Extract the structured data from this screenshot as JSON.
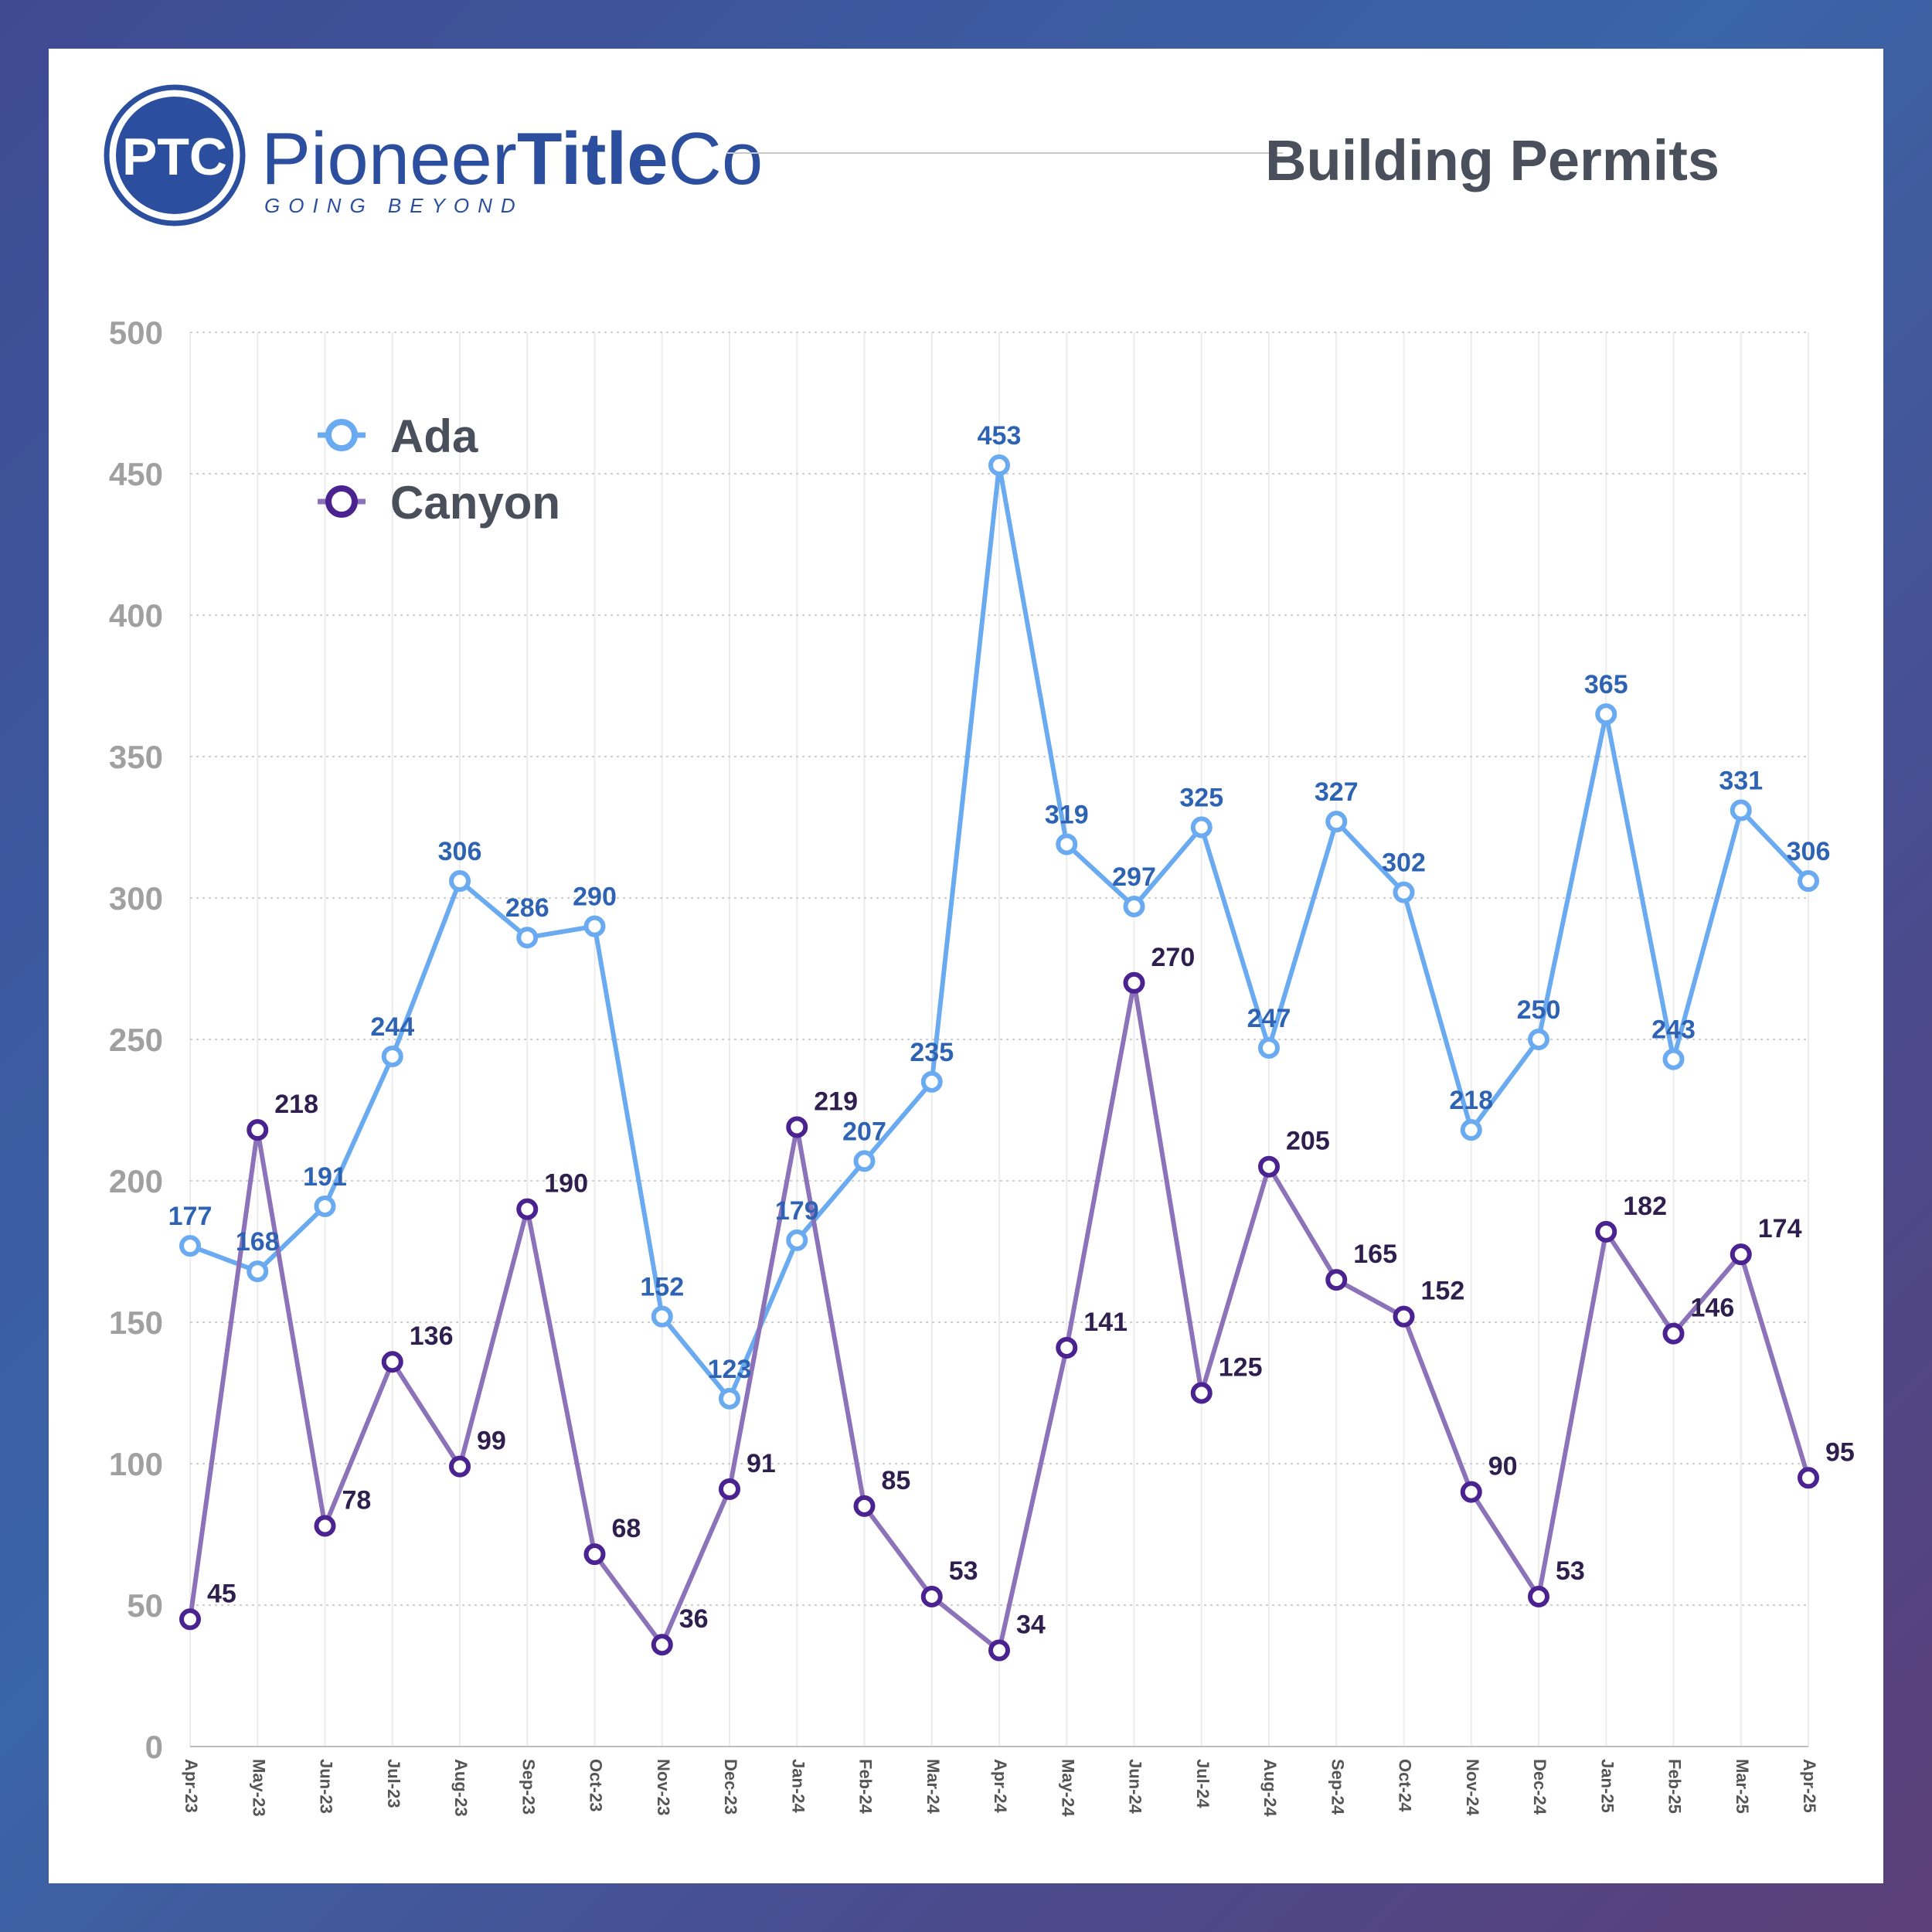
{
  "header": {
    "logo_badge": "PTC",
    "brand_light": "Pioneer",
    "brand_bold": "Title",
    "brand_end": "Co",
    "tagline": "GOING BEYOND",
    "title": "Building Permits"
  },
  "colors": {
    "ada": "#6aaaf0",
    "ada_label": "#2e63b4",
    "canyon": "#8c72b8",
    "canyon_marker": "#4b2390",
    "canyon_label": "#2e1f4e",
    "axis_text": "#a0a0a0",
    "brand": "#2b4f9e"
  },
  "chart_data": {
    "type": "line",
    "title": "Building Permits",
    "categories": [
      "Apr-23",
      "May-23",
      "Jun-23",
      "Jul-23",
      "Aug-23",
      "Sep-23",
      "Oct-23",
      "Nov-23",
      "Dec-23",
      "Jan-24",
      "Feb-24",
      "Mar-24",
      "Apr-24",
      "May-24",
      "Jun-24",
      "Jul-24",
      "Aug-24",
      "Sep-24",
      "Oct-24",
      "Nov-24",
      "Dec-24",
      "Jan-25",
      "Feb-25",
      "Mar-25",
      "Apr-25"
    ],
    "series": [
      {
        "name": "Ada",
        "values": [
          177,
          168,
          191,
          244,
          306,
          286,
          290,
          152,
          123,
          179,
          207,
          235,
          453,
          319,
          297,
          325,
          247,
          327,
          302,
          218,
          250,
          365,
          243,
          331,
          306
        ]
      },
      {
        "name": "Canyon",
        "values": [
          45,
          218,
          78,
          136,
          99,
          190,
          68,
          36,
          91,
          219,
          85,
          53,
          34,
          141,
          270,
          125,
          205,
          165,
          152,
          90,
          53,
          182,
          146,
          174,
          95
        ]
      }
    ],
    "ylim": [
      0,
      500
    ],
    "yticks": [
      0,
      50,
      100,
      150,
      200,
      250,
      300,
      350,
      400,
      450,
      500
    ],
    "grid": true,
    "legend_position": "top-left"
  }
}
